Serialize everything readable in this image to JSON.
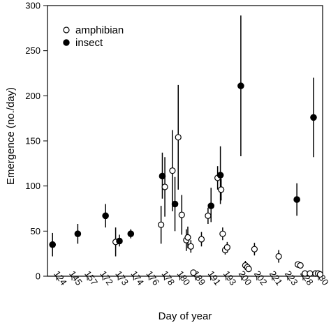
{
  "chart_data": {
    "type": "scatter",
    "xlabel": "Day of year",
    "ylabel": "Emergence (no./day)",
    "ylim": [
      0,
      300
    ],
    "yticks": [
      0,
      50,
      100,
      150,
      200,
      250,
      300
    ],
    "x_tick_labels": [
      "124",
      "145",
      "157",
      "172",
      "173",
      "174",
      "176",
      "178",
      "180",
      "189",
      "191",
      "193",
      "200",
      "202",
      "221",
      "223",
      "228",
      "230"
    ],
    "legend": {
      "position": "top-left",
      "entries": [
        {
          "series": "amphibian",
          "label": "amphibian",
          "marker": "open-circle"
        },
        {
          "series": "insect",
          "label": "insect",
          "marker": "filled-circle"
        }
      ]
    },
    "grid": false,
    "series": [
      {
        "name": "amphibian",
        "marker": "open-circle",
        "points": [
          {
            "x": 149,
            "y": 38,
            "low": 22,
            "high": 54
          },
          {
            "x": 167,
            "y": 57,
            "low": 36,
            "high": 78
          },
          {
            "x": 168.5,
            "y": 99,
            "low": 66,
            "high": 132
          },
          {
            "x": 171.5,
            "y": 117,
            "low": 72,
            "high": 162
          },
          {
            "x": 173.8,
            "y": 154,
            "low": 96,
            "high": 212
          },
          {
            "x": 175.2,
            "y": 68,
            "low": 46,
            "high": 90
          },
          {
            "x": 177,
            "y": 40,
            "low": 28,
            "high": 52
          },
          {
            "x": 177.6,
            "y": 43,
            "low": 31,
            "high": 55
          },
          {
            "x": 178.8,
            "y": 33,
            "low": 26,
            "high": 40
          },
          {
            "x": 179.8,
            "y": 4
          },
          {
            "x": 183,
            "y": 41,
            "low": 33,
            "high": 49
          },
          {
            "x": 185.6,
            "y": 67,
            "low": 58,
            "high": 76
          },
          {
            "x": 189.4,
            "y": 109,
            "low": 96,
            "high": 122
          },
          {
            "x": 190.8,
            "y": 96,
            "low": 84,
            "high": 108
          },
          {
            "x": 191.4,
            "y": 47,
            "low": 40,
            "high": 54
          },
          {
            "x": 192.4,
            "y": 29,
            "low": 24,
            "high": 34
          },
          {
            "x": 193.2,
            "y": 32,
            "low": 26,
            "high": 38
          },
          {
            "x": 200.4,
            "y": 12,
            "low": 7,
            "high": 17
          },
          {
            "x": 201.2,
            "y": 10
          },
          {
            "x": 201.7,
            "y": 8
          },
          {
            "x": 204,
            "y": 30,
            "low": 23,
            "high": 37
          },
          {
            "x": 213.6,
            "y": 22,
            "low": 15,
            "high": 29
          },
          {
            "x": 221.2,
            "y": 13
          },
          {
            "x": 222.2,
            "y": 12
          },
          {
            "x": 224,
            "y": 3
          },
          {
            "x": 226,
            "y": 3
          },
          {
            "x": 228.2,
            "y": 3
          },
          {
            "x": 229.2,
            "y": 3
          },
          {
            "x": 230,
            "y": 2
          }
        ]
      },
      {
        "name": "insect",
        "marker": "filled-circle",
        "points": [
          {
            "x": 124,
            "y": 35,
            "low": 22,
            "high": 48
          },
          {
            "x": 134,
            "y": 47,
            "low": 36,
            "high": 58
          },
          {
            "x": 145,
            "y": 67,
            "low": 54,
            "high": 80
          },
          {
            "x": 150.5,
            "y": 39,
            "low": 33,
            "high": 46
          },
          {
            "x": 155,
            "y": 47,
            "low": 42,
            "high": 52
          },
          {
            "x": 167.5,
            "y": 111,
            "low": 86,
            "high": 137
          },
          {
            "x": 172.5,
            "y": 80,
            "low": 50,
            "high": 110
          },
          {
            "x": 186.8,
            "y": 78,
            "low": 60,
            "high": 98
          },
          {
            "x": 190.5,
            "y": 112,
            "low": 80,
            "high": 144
          },
          {
            "x": 198.6,
            "y": 211,
            "low": 133,
            "high": 289
          },
          {
            "x": 220.8,
            "y": 85,
            "low": 67,
            "high": 103
          },
          {
            "x": 227.4,
            "y": 176,
            "low": 132,
            "high": 220
          }
        ]
      }
    ]
  }
}
